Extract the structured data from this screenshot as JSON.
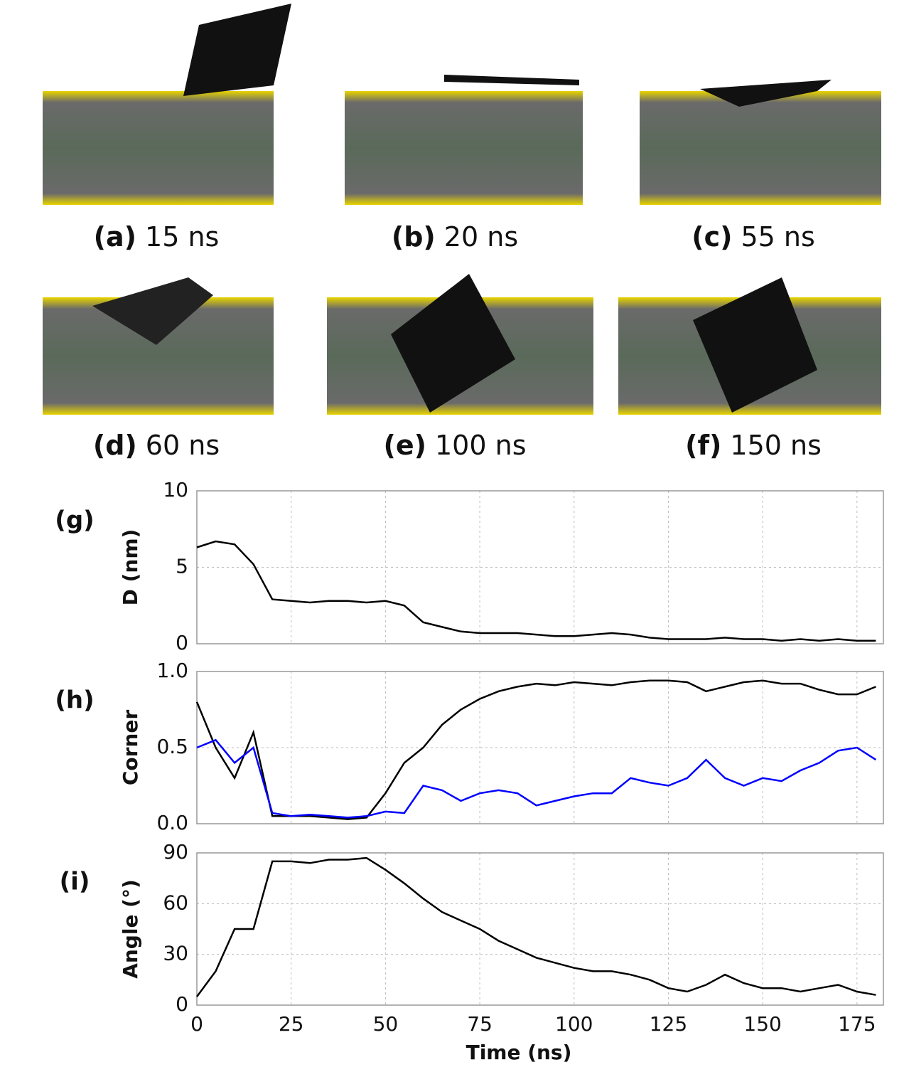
{
  "figure_panels": [
    {
      "label": "(a)",
      "time": "15 ns"
    },
    {
      "label": "(b)",
      "time": "20 ns"
    },
    {
      "label": "(c)",
      "time": "55 ns"
    },
    {
      "label": "(d)",
      "time": "60 ns"
    },
    {
      "label": "(e)",
      "time": "100 ns"
    },
    {
      "label": "(f)",
      "time": "150 ns"
    }
  ],
  "chart_data": [
    {
      "type": "line",
      "panel_label": "(g)",
      "ylabel": "D (nm)",
      "x": [
        0,
        5,
        10,
        15,
        20,
        25,
        30,
        35,
        40,
        45,
        50,
        55,
        60,
        65,
        70,
        75,
        80,
        85,
        90,
        95,
        100,
        105,
        110,
        115,
        120,
        125,
        130,
        135,
        140,
        145,
        150,
        155,
        160,
        165,
        170,
        175,
        180
      ],
      "series": [
        {
          "color": "#000000",
          "values": [
            6.3,
            6.7,
            6.5,
            5.2,
            2.9,
            2.8,
            2.7,
            2.8,
            2.8,
            2.7,
            2.8,
            2.5,
            1.4,
            1.1,
            0.8,
            0.7,
            0.7,
            0.7,
            0.6,
            0.5,
            0.5,
            0.6,
            0.7,
            0.6,
            0.4,
            0.3,
            0.3,
            0.3,
            0.4,
            0.3,
            0.3,
            0.2,
            0.3,
            0.2,
            0.3,
            0.2,
            0.2
          ]
        }
      ],
      "xlim": [
        0,
        182
      ],
      "xticks": [
        0,
        25,
        50,
        75,
        100,
        125,
        150,
        175
      ],
      "show_xtick_labels": false,
      "ylim": [
        0,
        10
      ],
      "yticks": [
        0,
        5,
        10
      ],
      "grid": true
    },
    {
      "type": "line",
      "panel_label": "(h)",
      "ylabel": "Corner",
      "x": [
        0,
        5,
        10,
        15,
        20,
        25,
        30,
        35,
        40,
        45,
        50,
        55,
        60,
        65,
        70,
        75,
        80,
        85,
        90,
        95,
        100,
        105,
        110,
        115,
        120,
        125,
        130,
        135,
        140,
        145,
        150,
        155,
        160,
        165,
        170,
        175,
        180
      ],
      "series": [
        {
          "color": "#000000",
          "values": [
            0.8,
            0.5,
            0.3,
            0.6,
            0.05,
            0.05,
            0.05,
            0.04,
            0.03,
            0.04,
            0.2,
            0.4,
            0.5,
            0.65,
            0.75,
            0.82,
            0.87,
            0.9,
            0.92,
            0.91,
            0.93,
            0.92,
            0.91,
            0.93,
            0.94,
            0.94,
            0.93,
            0.87,
            0.9,
            0.93,
            0.94,
            0.92,
            0.92,
            0.88,
            0.85,
            0.85,
            0.9
          ]
        },
        {
          "color": "#0000ff",
          "values": [
            0.5,
            0.55,
            0.4,
            0.5,
            0.07,
            0.05,
            0.06,
            0.05,
            0.04,
            0.05,
            0.08,
            0.07,
            0.25,
            0.22,
            0.15,
            0.2,
            0.22,
            0.2,
            0.12,
            0.15,
            0.18,
            0.2,
            0.2,
            0.3,
            0.27,
            0.25,
            0.3,
            0.42,
            0.3,
            0.25,
            0.3,
            0.28,
            0.35,
            0.4,
            0.48,
            0.5,
            0.42
          ]
        }
      ],
      "xlim": [
        0,
        182
      ],
      "xticks": [
        0,
        25,
        50,
        75,
        100,
        125,
        150,
        175
      ],
      "show_xtick_labels": false,
      "ylim": [
        0,
        1
      ],
      "yticks": [
        {
          "value": 0,
          "label": "0.0"
        },
        {
          "value": 0.5,
          "label": "0.5"
        },
        {
          "value": 1,
          "label": "1.0"
        }
      ],
      "grid": true
    },
    {
      "type": "line",
      "panel_label": "(i)",
      "ylabel": "Angle (°)",
      "xlabel": "Time (ns)",
      "x": [
        0,
        5,
        10,
        15,
        20,
        25,
        30,
        35,
        40,
        45,
        50,
        55,
        60,
        65,
        70,
        75,
        80,
        85,
        90,
        95,
        100,
        105,
        110,
        115,
        120,
        125,
        130,
        135,
        140,
        145,
        150,
        155,
        160,
        165,
        170,
        175,
        180
      ],
      "series": [
        {
          "color": "#000000",
          "values": [
            5,
            20,
            45,
            45,
            85,
            85,
            84,
            86,
            86,
            87,
            80,
            72,
            63,
            55,
            50,
            45,
            38,
            33,
            28,
            25,
            22,
            20,
            20,
            18,
            15,
            10,
            8,
            12,
            18,
            13,
            10,
            10,
            8,
            10,
            12,
            8,
            6
          ]
        }
      ],
      "xlim": [
        0,
        182
      ],
      "xticks": [
        0,
        25,
        50,
        75,
        100,
        125,
        150,
        175
      ],
      "show_xtick_labels": true,
      "ylim": [
        0,
        90
      ],
      "yticks": [
        0,
        30,
        60,
        90
      ],
      "grid": true
    }
  ]
}
